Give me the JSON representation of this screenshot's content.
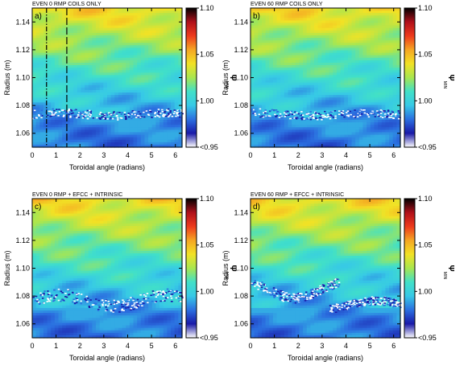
{
  "figure": {
    "colorbar": {
      "title": "Ψ",
      "subscript": "MIN",
      "ticks": [
        "1.10",
        "1.05",
        "1.00",
        "<0.95"
      ],
      "tick_values": [
        1.1,
        1.05,
        1.0,
        0.95
      ],
      "colors": [
        "#ffffff",
        "#1a1aa8",
        "#2b6fe0",
        "#37c9e6",
        "#41e0c8",
        "#a8e650",
        "#f2e225",
        "#f5a623",
        "#ee3a1c",
        "#b0101a",
        "#000000"
      ]
    }
  },
  "chart_data": [
    {
      "type": "heatmap",
      "title": "EVEN 0 RMP COILS ONLY",
      "panel_label": "a)",
      "xlabel": "Toroidal angle (radians)",
      "ylabel": "Radius (m)",
      "xlim": [
        0,
        6.28
      ],
      "ylim": [
        1.05,
        1.15
      ],
      "xticks": [
        "0",
        "1",
        "2",
        "3",
        "4",
        "5",
        "6"
      ],
      "yticks": [
        "1.06",
        "1.08",
        "1.10",
        "1.12",
        "1.14"
      ],
      "value_label": "Ψ_MIN",
      "value_range": [
        0.95,
        1.1
      ],
      "marker_lines": [
        {
          "x": 0.6,
          "style": "dash-dot"
        },
        {
          "x": 1.45,
          "style": "dashed"
        }
      ],
      "scatter_bands": [
        {
          "center": 1.074,
          "width": 0.006,
          "amplitude": 0.001,
          "phase": 0.0
        }
      ]
    },
    {
      "type": "heatmap",
      "title": "EVEN 60 RMP COILS ONLY",
      "panel_label": "b)",
      "xlabel": "Toroidal angle (radians)",
      "ylabel": "Radius (m)",
      "xlim": [
        0,
        6.28
      ],
      "ylim": [
        1.05,
        1.15
      ],
      "xticks": [
        "0",
        "1",
        "2",
        "3",
        "4",
        "5",
        "6"
      ],
      "yticks": [
        "1.06",
        "1.08",
        "1.10",
        "1.12",
        "1.14"
      ],
      "value_label": "Ψ_MIN",
      "value_range": [
        0.95,
        1.1
      ],
      "marker_lines": [],
      "scatter_bands": [
        {
          "center": 1.074,
          "width": 0.006,
          "amplitude": 0.001,
          "phase": 1.0
        }
      ]
    },
    {
      "type": "heatmap",
      "title": "EVEN 0 RMP + EFCC + INTRINSIC",
      "panel_label": "c)",
      "xlabel": "Toroidal angle (radians)",
      "ylabel": "Radius (m)",
      "xlim": [
        0,
        6.28
      ],
      "ylim": [
        1.05,
        1.15
      ],
      "xticks": [
        "0",
        "1",
        "2",
        "3",
        "4",
        "5",
        "6"
      ],
      "yticks": [
        "1.06",
        "1.08",
        "1.10",
        "1.12",
        "1.14"
      ],
      "value_label": "Ψ_MIN",
      "value_range": [
        0.95,
        1.1
      ],
      "marker_lines": [],
      "scatter_bands": [
        {
          "center": 1.077,
          "width": 0.009,
          "amplitude": 0.004,
          "phase": 0.0
        }
      ]
    },
    {
      "type": "heatmap",
      "title": "EVEN 60 RMP + EFCC + INTRINSIC",
      "panel_label": "d)",
      "xlabel": "Toroidal angle (radians)",
      "ylabel": "Radius (m)",
      "xlim": [
        0,
        6.28
      ],
      "ylim": [
        1.05,
        1.15
      ],
      "xticks": [
        "0",
        "1",
        "2",
        "3",
        "4",
        "5",
        "6"
      ],
      "yticks": [
        "1.06",
        "1.08",
        "1.10",
        "1.12",
        "1.14"
      ],
      "value_label": "Ψ_MIN",
      "value_range": [
        0.95,
        1.1
      ],
      "marker_lines": [],
      "scatter_bands": [
        {
          "center": 1.085,
          "width": 0.007,
          "amplitude": 0.006,
          "phase": 2.2,
          "xmax": 3.7
        },
        {
          "center": 1.074,
          "width": 0.006,
          "amplitude": 0.003,
          "phase": 0.5,
          "xmin": 3.3
        }
      ]
    }
  ]
}
